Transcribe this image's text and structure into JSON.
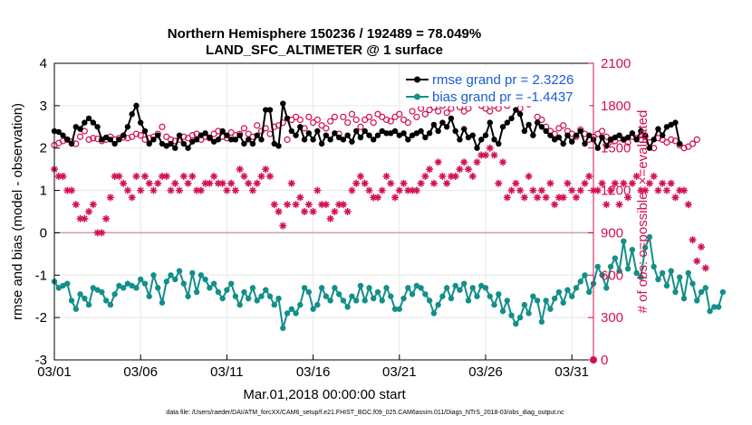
{
  "chart_data": {
    "type": "line",
    "title_line1": "Northern Hemisphere 150236 / 192489 = 78.049%",
    "title_line2": "LAND_SFC_ALTIMETER @ 1 surface",
    "xlabel": "Mar.01,2018 00:00:00 start",
    "ylabel_left": "rmse and bias (model - observation)",
    "ylabel_right": "# of obs: o=possible; ×=evaluated",
    "footnote": "data file: /Users/raeder/DAI/ATM_forcXX/CAM6_setup/f.e21.FHIST_BGC.f09_025.CAM6assim.011/Diags_NTrS_2018-03/obs_diag_output.nc",
    "xlim": [
      1,
      32.25
    ],
    "ylim_left": [
      -3,
      4
    ],
    "ylim_right": [
      0,
      2100
    ],
    "x_ticks": [
      1,
      6,
      11,
      16,
      21,
      26,
      31
    ],
    "x_tick_labels": [
      "03/01",
      "03/06",
      "03/11",
      "03/16",
      "03/21",
      "03/26",
      "03/31"
    ],
    "y_left_ticks": [
      -3,
      -2,
      -1,
      0,
      1,
      2,
      3,
      4
    ],
    "y_left_tick_labels": [
      "-3",
      "-2",
      "-1",
      "0",
      "1",
      "2",
      "3",
      "4"
    ],
    "y_right_ticks": [
      0,
      300,
      600,
      900,
      1200,
      1500,
      1800,
      2100
    ],
    "y_right_tick_labels": [
      "0",
      "300",
      "600",
      "900",
      "1200",
      "1500",
      "1800",
      "2100"
    ],
    "legend_position": "top-right",
    "grid": true,
    "colors": {
      "rmse": "#000000",
      "bias": "#138f8a",
      "obs": "#d4104f",
      "grid": "#e8e8e8",
      "zero_line": "#c8a0a0"
    },
    "series": [
      {
        "name": "rmse grand pr = 2.3226",
        "axis": "left",
        "x_start": 1,
        "x_step": 0.25,
        "values": [
          2.4,
          2.38,
          2.3,
          2.2,
          2.1,
          2.5,
          2.45,
          2.6,
          2.7,
          2.6,
          2.5,
          2.2,
          2.25,
          2.2,
          2.1,
          2.2,
          2.3,
          2.5,
          2.8,
          3.0,
          2.6,
          2.4,
          2.1,
          2.2,
          2.3,
          2.1,
          2.05,
          2.1,
          2.0,
          2.3,
          2.1,
          2.0,
          2.15,
          2.2,
          2.3,
          2.35,
          2.25,
          2.15,
          2.2,
          2.4,
          2.3,
          2.2,
          2.2,
          2.3,
          2.1,
          2.2,
          2.1,
          2.3,
          2.2,
          2.9,
          2.9,
          2.1,
          2.05,
          3.05,
          2.7,
          2.4,
          2.3,
          2.5,
          2.2,
          2.35,
          2.2,
          2.4,
          2.1,
          2.3,
          2.2,
          2.35,
          2.25,
          2.2,
          2.3,
          2.15,
          2.4,
          2.25,
          2.4,
          2.3,
          2.2,
          2.3,
          2.4,
          2.35,
          2.35,
          2.4,
          2.3,
          2.35,
          2.2,
          2.3,
          2.35,
          2.4,
          2.25,
          2.35,
          2.55,
          2.4,
          2.6,
          2.5,
          2.7,
          2.4,
          2.2,
          2.45,
          2.25,
          2.3,
          2.0,
          2.2,
          2.3,
          2.6,
          2.2,
          2.1,
          2.5,
          2.6,
          2.7,
          2.9,
          2.8,
          2.4,
          2.55,
          2.3,
          2.6,
          2.5,
          2.4,
          2.3,
          2.2,
          2.25,
          2.1,
          2.3,
          2.15,
          2.3,
          2.4,
          2.1,
          2.3,
          2.2,
          2.0,
          2.25,
          2.05,
          2.2,
          2.25,
          2.3,
          2.2,
          2.25,
          2.35,
          2.2,
          2.4,
          2.3,
          2.0,
          2.2,
          2.45,
          2.3,
          2.5,
          2.55,
          2.6,
          2.1
        ]
      },
      {
        "name": "bias grand pr = -1.4437",
        "axis": "left",
        "x_start": 1,
        "x_step": 0.25,
        "values": [
          -1.15,
          -1.3,
          -1.25,
          -1.2,
          -1.6,
          -1.8,
          -1.45,
          -1.55,
          -1.7,
          -1.3,
          -1.35,
          -1.4,
          -1.6,
          -1.7,
          -1.45,
          -1.25,
          -1.3,
          -1.2,
          -1.25,
          -1.3,
          -1.1,
          -1.2,
          -1.5,
          -1.0,
          -1.3,
          -1.65,
          -1.15,
          -1.0,
          -1.1,
          -0.9,
          -1.2,
          -1.5,
          -0.95,
          -1.4,
          -1.0,
          -1.1,
          -1.3,
          -1.2,
          -1.4,
          -1.55,
          -1.35,
          -1.2,
          -1.5,
          -1.7,
          -1.4,
          -1.55,
          -1.3,
          -1.6,
          -1.5,
          -1.35,
          -1.5,
          -1.7,
          -1.55,
          -2.25,
          -1.9,
          -1.8,
          -1.9,
          -1.7,
          -1.3,
          -1.4,
          -1.8,
          -1.7,
          -1.3,
          -1.5,
          -1.6,
          -1.3,
          -1.45,
          -1.6,
          -1.75,
          -1.5,
          -1.6,
          -1.25,
          -1.6,
          -1.3,
          -1.55,
          -1.4,
          -1.6,
          -1.3,
          -1.5,
          -1.8,
          -1.8,
          -1.55,
          -1.3,
          -1.45,
          -1.25,
          -1.3,
          -1.45,
          -1.6,
          -1.9,
          -1.7,
          -1.5,
          -1.3,
          -1.55,
          -1.25,
          -1.35,
          -1.2,
          -1.6,
          -1.3,
          -1.5,
          -1.25,
          -1.3,
          -1.5,
          -1.7,
          -1.45,
          -1.85,
          -1.6,
          -1.95,
          -2.15,
          -2.0,
          -1.7,
          -1.9,
          -1.5,
          -1.6,
          -2.1,
          -1.6,
          -1.8,
          -1.55,
          -1.4,
          -1.65,
          -1.35,
          -1.5,
          -1.3,
          -1.15,
          -1.0,
          -1.4,
          -1.2,
          -0.8,
          -1.0,
          -1.3,
          -0.8,
          -0.6,
          -0.9,
          -0.2,
          -0.85,
          -0.4,
          -0.95,
          -1.05,
          -0.35,
          -0.1,
          -0.8,
          -1.1,
          -0.95,
          -1.25,
          -0.9,
          -1.4,
          -1.05,
          -1.55,
          -0.95,
          -1.2,
          -1.6,
          -1.4,
          -1.3,
          -1.85,
          -1.75,
          -1.75,
          -1.4
        ]
      },
      {
        "name": "possible",
        "axis": "right",
        "x_start": 1,
        "x_step": 0.25,
        "values": [
          1520,
          1535,
          1550,
          1560,
          1545,
          1530,
          1580,
          1620,
          1560,
          1570,
          1565,
          1550,
          1560,
          1580,
          1560,
          1570,
          1575,
          1570,
          1580,
          1600,
          1590,
          1560,
          1570,
          1580,
          1600,
          1650,
          1580,
          1560,
          1550,
          1560,
          1580,
          1570,
          1590,
          1600,
          1560,
          1580,
          1570,
          1600,
          1620,
          1580,
          1570,
          1610,
          1590,
          1600,
          1640,
          1600,
          1580,
          1660,
          1620,
          1640,
          1600,
          1650,
          1660,
          1680,
          1560,
          1700,
          1720,
          1700,
          1640,
          1720,
          1680,
          1700,
          1660,
          1640,
          1690,
          1720,
          1600,
          1720,
          1680,
          1740,
          1700,
          1650,
          1700,
          1720,
          1680,
          1740,
          1720,
          1700,
          1690,
          1720,
          1740,
          1700,
          1680,
          1760,
          1720,
          1780,
          1740,
          1770,
          1790,
          1760,
          1800,
          1750,
          1780,
          1820,
          1790,
          1760,
          1780,
          1820,
          1840,
          1800,
          1780,
          1760,
          1800,
          1780,
          1840,
          1800,
          1820,
          1830,
          1780,
          1850,
          1810,
          1840,
          1720,
          1700,
          1650,
          1620,
          1600,
          1640,
          1660,
          1620,
          1600,
          1580,
          1630,
          1600,
          1560,
          1580,
          1600,
          1620,
          1580,
          1560,
          1550,
          1570,
          1560,
          1540,
          1580,
          1570,
          1560,
          1580,
          1540,
          1500,
          1570,
          1560,
          1540,
          1560,
          1550,
          1520,
          1500,
          1510,
          1530,
          1560
        ]
      },
      {
        "name": "evaluated",
        "axis": "right",
        "x_start": 1,
        "x_step": 0.25,
        "values": [
          1350,
          1300,
          1300,
          1200,
          1200,
          1100,
          1000,
          1000,
          1050,
          1100,
          900,
          900,
          1000,
          1150,
          1300,
          1300,
          1250,
          1200,
          1150,
          1300,
          1200,
          1300,
          1250,
          1200,
          1250,
          1300,
          1300,
          1200,
          1250,
          1200,
          1300,
          1250,
          1300,
          1200,
          1200,
          1250,
          1250,
          1300,
          1250,
          1250,
          1200,
          1250,
          1200,
          1350,
          1300,
          1250,
          1200,
          1250,
          1300,
          1350,
          1300,
          1100,
          1050,
          950,
          1100,
          1250,
          1100,
          1150,
          1050,
          1100,
          1050,
          1200,
          1100,
          1100,
          1000,
          1050,
          1100,
          1100,
          1050,
          1200,
          1250,
          1300,
          1250,
          1200,
          1150,
          1150,
          1200,
          1300,
          1250,
          1150,
          1200,
          1250,
          1200,
          1200,
          1200,
          1250,
          1300,
          1350,
          1250,
          1400,
          1300,
          1250,
          1300,
          1300,
          1350,
          1400,
          1350,
          1300,
          1400,
          1450,
          1450,
          1500,
          1450,
          1250,
          1400,
          1150,
          1200,
          1250,
          1200,
          1150,
          1300,
          1200,
          1150,
          1200,
          1150,
          1250,
          1100,
          1150,
          1150,
          1250,
          1200,
          1150,
          1200,
          1250,
          1300,
          1200,
          1200,
          1250,
          1100,
          1200,
          1250,
          1100,
          1250,
          1150,
          1250,
          1300,
          1200,
          1200,
          1250,
          1300,
          1200,
          1250,
          1200,
          1250,
          1150,
          1200,
          1200,
          1100,
          850,
          700,
          800,
          650
        ]
      }
    ]
  }
}
